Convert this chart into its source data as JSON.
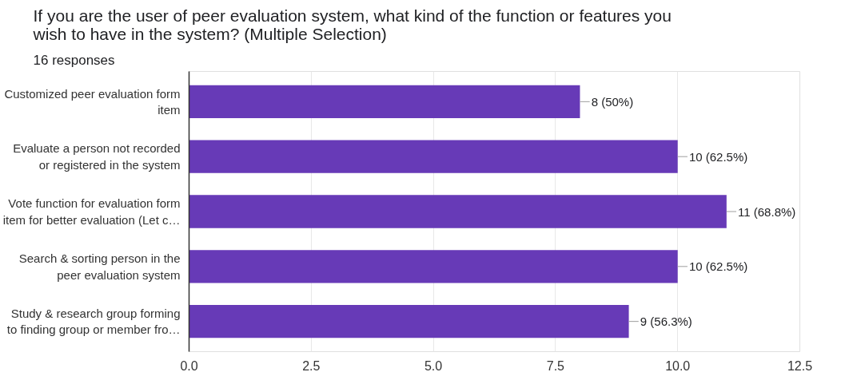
{
  "chart_data": {
    "type": "bar",
    "orientation": "horizontal",
    "title": "If you are the user of peer evaluation system, what kind of the function or features you wish to have in the system? (Multiple Selection)",
    "subtitle": "16 responses",
    "categories": [
      "Customized peer evaluation form\nitem",
      "Evaluate a person not recorded\nor registered in the system",
      "Vote function for evaluation form\nitem for better evaluation (Let c…",
      "Search & sorting person in the\npeer evaluation system",
      "Study & research group forming\nto finding group or member fro…"
    ],
    "values": [
      8,
      10,
      11,
      10,
      9
    ],
    "value_labels": [
      "8 (50%)",
      "10 (62.5%)",
      "11 (68.8%)",
      "10 (62.5%)",
      "9 (56.3%)"
    ],
    "color": "#673ab7",
    "xlim": [
      0,
      12.5
    ],
    "xticks": [
      {
        "value": 0,
        "label": "0.0"
      },
      {
        "value": 2.5,
        "label": "2.5"
      },
      {
        "value": 5,
        "label": "5.0"
      },
      {
        "value": 7.5,
        "label": "7.5"
      },
      {
        "value": 10,
        "label": "10.0"
      },
      {
        "value": 12.5,
        "label": "12.5"
      }
    ],
    "grid": "x"
  }
}
